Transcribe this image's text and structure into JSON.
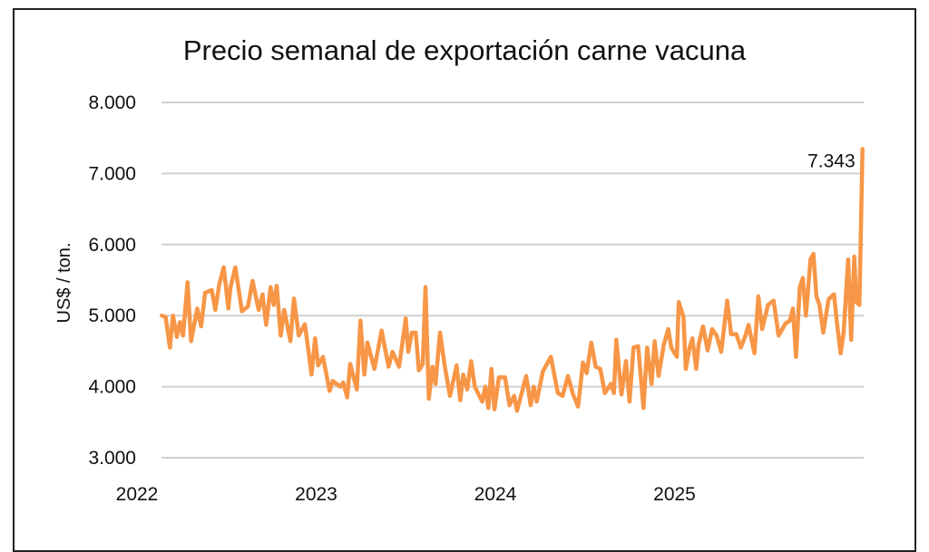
{
  "chart_data": {
    "type": "line",
    "title": "Precio semanal de exportación carne vacuna",
    "xlabel": "",
    "ylabel": "US$ / ton.",
    "ylim": [
      3000,
      8000
    ],
    "yticks": [
      "3.000",
      "4.000",
      "5.000",
      "6.000",
      "7.000",
      "8.000"
    ],
    "ytick_values": [
      3000,
      4000,
      5000,
      6000,
      7000,
      8000
    ],
    "xticks": [
      "2022",
      "2023",
      "2024",
      "2025"
    ],
    "xtick_values": [
      2022,
      2023,
      2024,
      2025
    ],
    "grid": true,
    "legend": "none",
    "line_color": "#F79646",
    "annotation": {
      "text": "7.343",
      "x": 2026.049,
      "y": 7343
    },
    "series": [
      {
        "x": [
          2022.138,
          2022.16,
          2022.184,
          2022.201,
          2022.223,
          2022.24,
          2022.257,
          2022.282,
          2022.302,
          2022.336,
          2022.358,
          2022.38,
          2022.417,
          2022.437,
          2022.459,
          2022.484,
          2022.51,
          2022.522,
          2022.549,
          2022.586,
          2022.619,
          2022.645,
          2022.679,
          2022.701,
          2022.721,
          2022.746,
          2022.763,
          2022.78,
          2022.802,
          2022.822,
          2022.856,
          2022.876,
          2022.903,
          2022.937,
          2022.974,
          2022.994,
          2023.011,
          2023.038,
          2023.075,
          2023.092,
          2023.134,
          2023.151,
          2023.173,
          2023.19,
          2023.227,
          2023.247,
          2023.269,
          2023.286,
          2023.325,
          2023.365,
          2023.404,
          2023.426,
          2023.463,
          2023.5,
          2023.514,
          2023.534,
          2023.556,
          2023.573,
          2023.595,
          2023.61,
          2023.629,
          2023.649,
          2023.666,
          2023.691,
          2023.717,
          2023.747,
          2023.784,
          2023.804,
          2023.821,
          2023.843,
          2023.865,
          2023.885,
          2023.927,
          2023.944,
          2023.961,
          2023.978,
          2023.995,
          2024.02,
          2024.054,
          2024.079,
          2024.105,
          2024.121,
          2024.172,
          2024.197,
          2024.214,
          2024.231,
          2024.265,
          2024.31,
          2024.349,
          2024.375,
          2024.405,
          2024.434,
          2024.462,
          2024.489,
          2024.51,
          2024.535,
          2024.56,
          2024.586,
          2024.611,
          2024.645,
          2024.662,
          2024.675,
          2024.704,
          2024.729,
          2024.749,
          2024.771,
          2024.797,
          2024.827,
          2024.847,
          2024.872,
          2024.889,
          2024.911,
          2024.94,
          2024.965,
          2024.982,
          2025.013,
          2025.024,
          2025.05,
          2025.063,
          2025.084,
          2025.1,
          2025.121,
          2025.134,
          2025.159,
          2025.185,
          2025.21,
          2025.235,
          2025.261,
          2025.294,
          2025.316,
          2025.345,
          2025.37,
          2025.396,
          2025.413,
          2025.446,
          2025.468,
          2025.489,
          2025.522,
          2025.553,
          2025.581,
          2025.62,
          2025.644,
          2025.661,
          2025.678,
          2025.699,
          2025.716,
          2025.733,
          2025.759,
          2025.775,
          2025.792,
          2025.809,
          2025.83,
          2025.86,
          2025.89,
          2025.907,
          2025.927,
          2025.944,
          2025.969,
          2025.986,
          2026.003,
          2026.015,
          2026.032,
          2026.049
        ],
        "values": [
          5000,
          4980,
          4550,
          5000,
          4700,
          4910,
          4720,
          5470,
          4640,
          5100,
          4850,
          5320,
          5360,
          5080,
          5440,
          5680,
          5100,
          5400,
          5680,
          5060,
          5130,
          5490,
          5080,
          5300,
          4870,
          5400,
          5150,
          5420,
          4720,
          5080,
          4640,
          5240,
          4720,
          4880,
          4170,
          4680,
          4300,
          4420,
          3940,
          4080,
          4000,
          4060,
          3850,
          4320,
          3960,
          4930,
          4170,
          4620,
          4250,
          4790,
          4280,
          4490,
          4280,
          4960,
          4490,
          4760,
          4760,
          4230,
          4320,
          5400,
          3830,
          4280,
          4040,
          4760,
          4300,
          3870,
          4300,
          3810,
          4170,
          3960,
          4360,
          4000,
          3790,
          4000,
          3700,
          4250,
          3680,
          4130,
          4130,
          3740,
          3870,
          3660,
          4150,
          3740,
          4000,
          3790,
          4210,
          4420,
          3910,
          3870,
          4150,
          3890,
          3720,
          4340,
          4190,
          4620,
          4280,
          4250,
          3910,
          4040,
          3910,
          4660,
          3890,
          4360,
          3790,
          4550,
          4570,
          3700,
          4550,
          4040,
          4640,
          4150,
          4590,
          4810,
          4550,
          4420,
          5190,
          4980,
          4250,
          4550,
          4680,
          4250,
          4590,
          4850,
          4510,
          4810,
          4720,
          4490,
          5210,
          4740,
          4740,
          4550,
          4720,
          4870,
          4470,
          5270,
          4810,
          5150,
          5210,
          4720,
          4890,
          4930,
          5100,
          4420,
          5400,
          5530,
          5000,
          5790,
          5870,
          5270,
          5150,
          4760,
          5230,
          5300,
          4890,
          4470,
          4760,
          5790,
          4660,
          5830,
          5190,
          5150,
          7343
        ]
      }
    ]
  }
}
